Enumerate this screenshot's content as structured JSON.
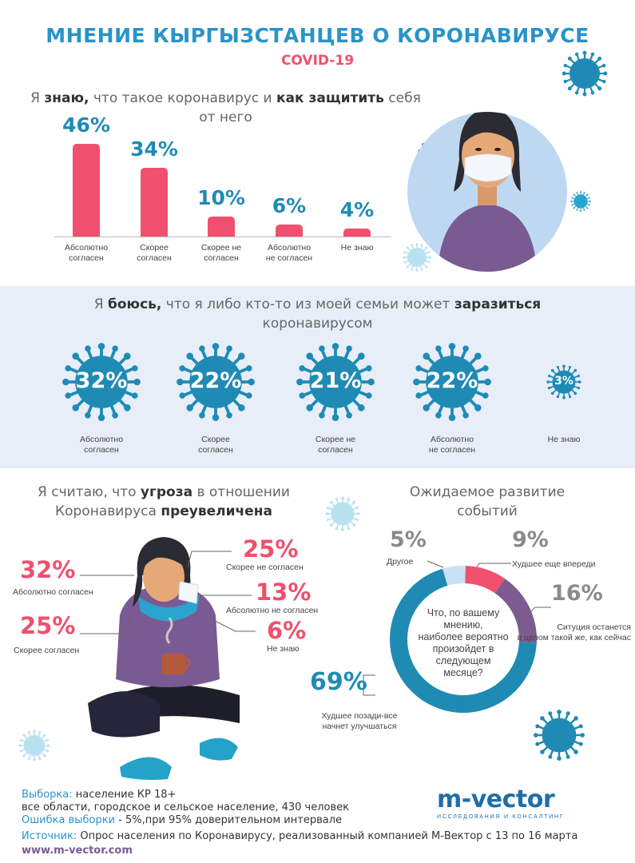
{
  "header": {
    "title": "МНЕНИЕ КЫРГЫЗСТАНЦЕВ О КОРОНАВИРУСЕ",
    "subtitle": "COVID-19"
  },
  "q1": {
    "pre": "Я ",
    "b1": "знаю,",
    "mid": " что такое коронавирус и ",
    "b2": "как защитить",
    "post": " себя",
    "line2": "от него",
    "bars": [
      {
        "value": 46,
        "label": "46%",
        "l1": "Абсолютно",
        "l2": "согласен"
      },
      {
        "value": 34,
        "label": "34%",
        "l1": "Скорее",
        "l2": "согласен"
      },
      {
        "value": 10,
        "label": "10%",
        "l1": "Скорее не",
        "l2": "согласен"
      },
      {
        "value": 6,
        "label": "6%",
        "l1": "Абсолютно",
        "l2": "не согласен"
      },
      {
        "value": 4,
        "label": "4%",
        "l1": "Не знаю",
        "l2": ""
      }
    ]
  },
  "q2": {
    "pre": "Я ",
    "b1": "боюсь,",
    "mid": " что я либо кто-то из моей семьи может ",
    "b2": "заразиться",
    "line2": "коронавирусом",
    "items": [
      {
        "value": 32,
        "label": "32%",
        "l1": "Абсолютно",
        "l2": "согласен"
      },
      {
        "value": 22,
        "label": "22%",
        "l1": "Скорее",
        "l2": "согласен"
      },
      {
        "value": 21,
        "label": "21%",
        "l1": "Скорее не",
        "l2": "согласен"
      },
      {
        "value": 22,
        "label": "22%",
        "l1": "Абсолютно",
        "l2": "не согласен"
      },
      {
        "value": 3,
        "label": "3%",
        "l1": "Не знаю",
        "l2": ""
      }
    ]
  },
  "q3": {
    "pre": "Я считаю, что ",
    "b1": "угроза",
    "mid": " в отношении",
    "line2pre": "Коронавируса ",
    "b2": "преувеличена",
    "items": [
      {
        "value": 32,
        "label": "32%",
        "text": "Абсолютно согласен"
      },
      {
        "value": 25,
        "label": "25%",
        "text": "Скорее согласен"
      },
      {
        "value": 25,
        "label": "25%",
        "text": "Скорее не согласен"
      },
      {
        "value": 13,
        "label": "13%",
        "text": "Абсолютно не согласен"
      },
      {
        "value": 6,
        "label": "6%",
        "text": "Не знаю"
      }
    ]
  },
  "q4": {
    "line1": "Ожидаемое развитие",
    "line2": "событий",
    "center": [
      "Что, по вашему",
      "мнению,",
      "наиболее вероятно",
      "произойдет в",
      "следующем",
      "месяце?"
    ],
    "items": [
      {
        "value": 5,
        "label": "5%",
        "t1": "Другое",
        "t2": "",
        "color": "#c9e1f5"
      },
      {
        "value": 9,
        "label": "9%",
        "t1": "Худшее еще впереди",
        "t2": "",
        "color": "#f0506e"
      },
      {
        "value": 16,
        "label": "16%",
        "t1": "Ситуция останется",
        "t2": "в целом такой же, как сейчас",
        "color": "#7d5a8f"
      },
      {
        "value": 69,
        "label": "69%",
        "t1": "Худшее позади-все",
        "t2": "начнет улучшаться",
        "color": "#1f8bb5"
      }
    ]
  },
  "footer": {
    "sample_key": "Выборка:",
    "sample_val": " население КР 18+",
    "sample_line2": "все области, городское и сельское население, 430 человек",
    "error_key": "Ошибка выборки",
    "error_val": " - 5%,при 95% доверительном интервале",
    "source_key": "Источник:",
    "source_val": " Опрос населения по Коронавирусу, реализованный компанией М-Вектор с 13 по 16 марта",
    "url": "www.m-vector.com"
  },
  "logo": {
    "name": "m-vector",
    "tagline": "ИССЛЕДОВАНИЯ И КОНСАЛТИНГ"
  },
  "colors": {
    "blue": "#2a93c8",
    "red": "#f0506e",
    "purple": "#7d5a8f",
    "band": "#e7eef8"
  }
}
